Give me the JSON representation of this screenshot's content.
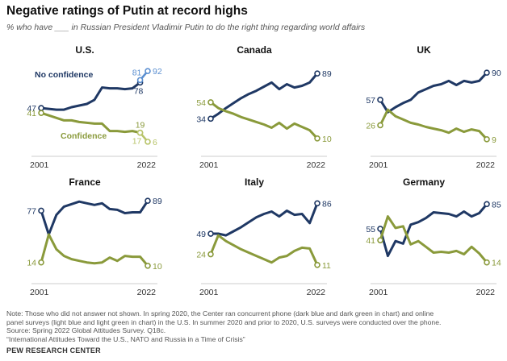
{
  "title": "Negative ratings of Putin at record highs",
  "subtitle": "% who have ___ in Russian President Vladimir Putin to do the right thing regarding world affairs",
  "notes": {
    "note": "Note: Those who did not answer not shown. In spring 2020, the Center ran concurrent phone (dark blue and dark green in chart) and online",
    "note2": "panel surveys (light blue and light green in chart) in the U.S. In summer 2020 and prior to 2020, U.S. surveys were conducted over the phone.",
    "source": "Source: Spring 2022 Global Attitudes Survey. Q18c.",
    "report": "“International Attitudes Toward the U.S., NATO and Russia in a Time of Crisis”"
  },
  "brand": "PEW RESEARCH CENTER",
  "colors": {
    "no_confidence": "#1f3864",
    "confidence": "#8a9a3b",
    "online_no_confidence": "#5b8fd0",
    "online_confidence": "#b8c46a"
  },
  "chart_data": [
    {
      "type": "line",
      "title": "U.S.",
      "x_start_label": "2001",
      "x_end_label": "2022",
      "ylim": [
        0,
        100
      ],
      "series_labels": {
        "no_confidence": "No confidence",
        "confidence": "Confidence"
      },
      "series": [
        {
          "name": "No confidence",
          "values": [
            47,
            46,
            45,
            45,
            48,
            50,
            52,
            57,
            72,
            71,
            71,
            70,
            71,
            78,
            92
          ]
        },
        {
          "name": "Confidence",
          "values": [
            41,
            38,
            35,
            32,
            32,
            30,
            29,
            28,
            28,
            19,
            19,
            18,
            19,
            17,
            6
          ]
        }
      ],
      "online_series": [
        {
          "name": "No confidence (online)",
          "from": 78,
          "to": 81
        },
        {
          "name": "Confidence (online)",
          "from": 19,
          "to": 17
        }
      ],
      "labels": {
        "nc_start": "47",
        "c_start": "41",
        "nc_end": "92",
        "c_end": "6",
        "online_nc": "81",
        "phone_nc": "78",
        "phone_c": "19",
        "online_c": "17"
      }
    },
    {
      "type": "line",
      "title": "Canada",
      "x_start_label": "2001",
      "x_end_label": "2022",
      "ylim": [
        0,
        100
      ],
      "series": [
        {
          "name": "No confidence",
          "values": [
            34,
            40,
            47,
            53,
            59,
            64,
            68,
            73,
            78,
            70,
            76,
            72,
            74,
            78,
            89
          ]
        },
        {
          "name": "Confidence",
          "values": [
            54,
            47,
            43,
            40,
            36,
            33,
            30,
            27,
            23,
            29,
            22,
            28,
            24,
            20,
            10
          ]
        }
      ],
      "labels": {
        "nc_start": "34",
        "c_start": "54",
        "nc_end": "89",
        "c_end": "10"
      }
    },
    {
      "type": "line",
      "title": "UK",
      "x_start_label": "2001",
      "x_end_label": "2022",
      "ylim": [
        0,
        100
      ],
      "series": [
        {
          "name": "No confidence",
          "values": [
            57,
            42,
            48,
            53,
            57,
            66,
            70,
            74,
            76,
            80,
            75,
            80,
            78,
            80,
            90
          ]
        },
        {
          "name": "Confidence",
          "values": [
            26,
            45,
            37,
            33,
            29,
            27,
            24,
            22,
            20,
            17,
            22,
            18,
            21,
            19,
            9
          ]
        }
      ],
      "labels": {
        "nc_start": "57",
        "c_start": "26",
        "nc_end": "90",
        "c_end": "9"
      }
    },
    {
      "type": "line",
      "title": "France",
      "x_start_label": "2001",
      "x_end_label": "2022",
      "ylim": [
        0,
        100
      ],
      "series": [
        {
          "name": "No confidence",
          "values": [
            77,
            48,
            72,
            82,
            85,
            88,
            86,
            84,
            86,
            79,
            78,
            74,
            75,
            75,
            89
          ]
        },
        {
          "name": "Confidence",
          "values": [
            14,
            48,
            30,
            22,
            18,
            16,
            14,
            13,
            14,
            20,
            16,
            22,
            21,
            21,
            10
          ]
        }
      ],
      "labels": {
        "nc_start": "77",
        "c_start": "14",
        "nc_end": "89",
        "c_end": "10"
      }
    },
    {
      "type": "line",
      "title": "Italy",
      "x_start_label": "2001",
      "x_end_label": "2022",
      "ylim": [
        0,
        100
      ],
      "series": [
        {
          "name": "No confidence",
          "values": [
            49,
            49,
            47,
            52,
            57,
            63,
            69,
            73,
            76,
            70,
            77,
            72,
            73,
            62,
            86
          ]
        },
        {
          "name": "Confidence",
          "values": [
            24,
            47,
            40,
            35,
            30,
            26,
            22,
            18,
            14,
            20,
            22,
            28,
            32,
            31,
            11
          ]
        }
      ],
      "labels": {
        "nc_start": "49",
        "c_start": "24",
        "nc_end": "86",
        "c_end": "11"
      }
    },
    {
      "type": "line",
      "title": "Germany",
      "x_start_label": "2001",
      "x_end_label": "2022",
      "ylim": [
        0,
        100
      ],
      "series": [
        {
          "name": "No confidence",
          "values": [
            55,
            22,
            40,
            37,
            60,
            63,
            68,
            75,
            74,
            73,
            70,
            76,
            70,
            74,
            85
          ]
        },
        {
          "name": "Confidence",
          "values": [
            41,
            70,
            56,
            58,
            36,
            40,
            33,
            26,
            27,
            26,
            28,
            24,
            33,
            25,
            14
          ]
        }
      ],
      "labels": {
        "nc_start": "55",
        "c_start": "41",
        "nc_end": "85",
        "c_end": "14"
      }
    }
  ]
}
